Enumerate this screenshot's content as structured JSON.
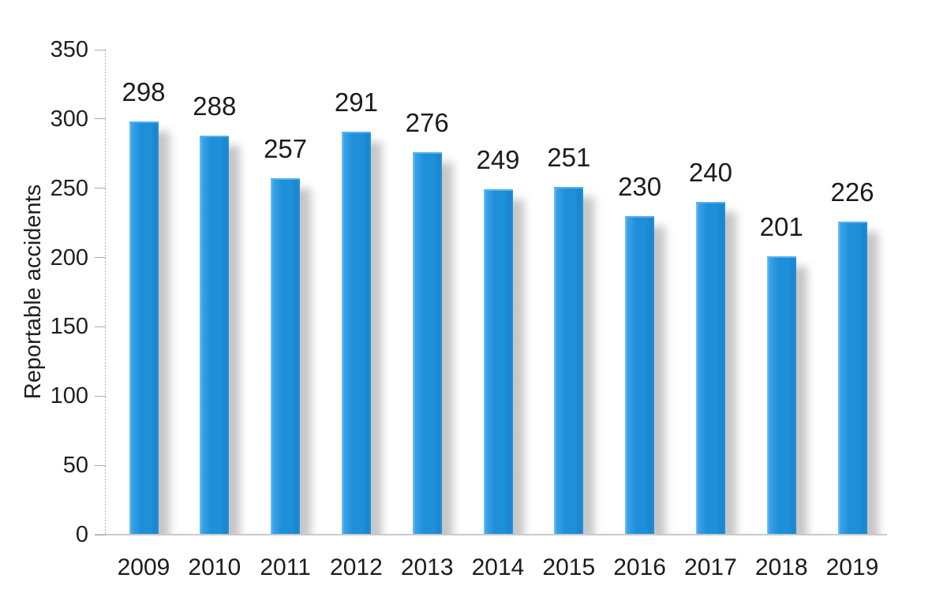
{
  "chart_data": {
    "type": "bar",
    "title": "",
    "categories": [
      "2009",
      "2010",
      "2011",
      "2012",
      "2013",
      "2014",
      "2015",
      "2016",
      "2017",
      "2018",
      "2019"
    ],
    "values": [
      298,
      288,
      257,
      291,
      276,
      249,
      251,
      230,
      240,
      201,
      226
    ],
    "xlabel": "",
    "ylabel": "Reportable accidents",
    "ylim": [
      0,
      350
    ],
    "yticks": [
      0,
      50,
      100,
      150,
      200,
      250,
      300,
      350
    ],
    "grid": false,
    "legend_position": "none",
    "data_labels_shown": true,
    "colors": {
      "bar": "#1e8fd9",
      "bar_highlight": "#79c4f4",
      "bar_shadow": "rgba(128,128,128,0.45)",
      "axis_line": "#b3b3b3",
      "tick_mark": "#a9a9a9",
      "text": "#1f1f1f",
      "background": "#ffffff"
    }
  }
}
